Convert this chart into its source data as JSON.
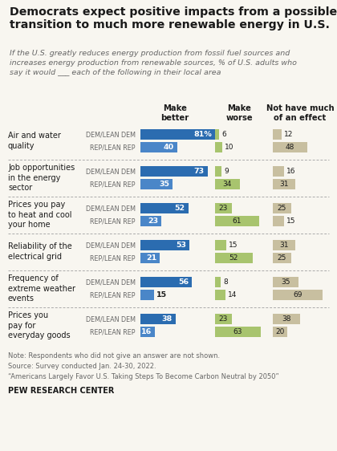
{
  "title": "Democrats expect positive impacts from a possible\ntransition to much more renewable energy in U.S.",
  "subtitle": "If the U.S. greatly reduces energy production from fossil fuel sources and\nincreases energy production from renewable sources, % of U.S. adults who\nsay it would ___ each of the following in their local area",
  "note_lines": [
    "Note: Respondents who did not give an answer are not shown.",
    "Source: Survey conducted Jan. 24-30, 2022.",
    "“Americans Largely Favor U.S. Taking Steps To Become Carbon Neutral by 2050”"
  ],
  "source_bold": "PEW RESEARCH CENTER",
  "col_headers": [
    "Make\nbetter",
    "Make\nworse",
    "Not have much\nof an effect"
  ],
  "categories": [
    "Air and water\nquality",
    "Job opportunities\nin the energy\nsector",
    "Prices you pay\nto heat and cool\nyour home",
    "Reliability of the\nelectrical grid",
    "Frequency of\nextreme weather\nevents",
    "Prices you\npay for\neveryday goods"
  ],
  "data": [
    {
      "dem": [
        81,
        6,
        12
      ],
      "rep": [
        40,
        10,
        48
      ]
    },
    {
      "dem": [
        73,
        9,
        16
      ],
      "rep": [
        35,
        34,
        31
      ]
    },
    {
      "dem": [
        52,
        23,
        25
      ],
      "rep": [
        23,
        61,
        15
      ]
    },
    {
      "dem": [
        53,
        15,
        31
      ],
      "rep": [
        21,
        52,
        25
      ]
    },
    {
      "dem": [
        56,
        8,
        35
      ],
      "rep": [
        15,
        14,
        69
      ]
    },
    {
      "dem": [
        38,
        23,
        38
      ],
      "rep": [
        16,
        63,
        20
      ]
    }
  ],
  "colors": {
    "dem_blue": "#2b6cb0",
    "rep_blue": "#4a86c8",
    "make_worse_green": "#a8c46e",
    "no_effect_tan": "#c8bfa0",
    "background": "#f8f6f0",
    "text_dark": "#1a1a1a",
    "text_gray": "#666666",
    "divider": "#aaaaaa"
  }
}
